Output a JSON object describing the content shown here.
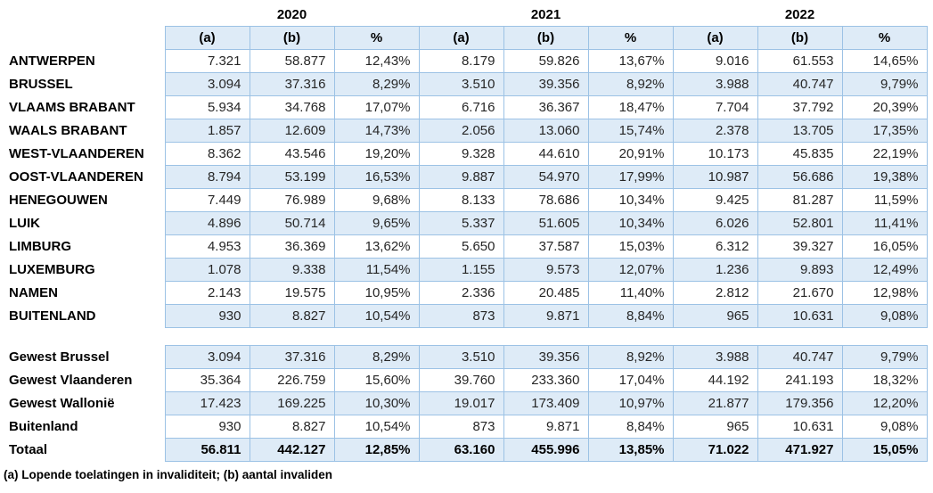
{
  "header": {
    "years": [
      "2020",
      "2021",
      "2022"
    ]
  },
  "columns": [
    "(a)",
    "(b)",
    "%",
    "(a)",
    "(b)",
    "%",
    "(a)",
    "(b)",
    "%"
  ],
  "table": {
    "province_rows": [
      {
        "label": "ANTWERPEN",
        "shaded": false,
        "values": [
          "7.321",
          "58.877",
          "12,43%",
          "8.179",
          "59.826",
          "13,67%",
          "9.016",
          "61.553",
          "14,65%"
        ]
      },
      {
        "label": "BRUSSEL",
        "shaded": true,
        "values": [
          "3.094",
          "37.316",
          "8,29%",
          "3.510",
          "39.356",
          "8,92%",
          "3.988",
          "40.747",
          "9,79%"
        ]
      },
      {
        "label": "VLAAMS BRABANT",
        "shaded": false,
        "values": [
          "5.934",
          "34.768",
          "17,07%",
          "6.716",
          "36.367",
          "18,47%",
          "7.704",
          "37.792",
          "20,39%"
        ]
      },
      {
        "label": "WAALS BRABANT",
        "shaded": true,
        "values": [
          "1.857",
          "12.609",
          "14,73%",
          "2.056",
          "13.060",
          "15,74%",
          "2.378",
          "13.705",
          "17,35%"
        ]
      },
      {
        "label": "WEST-VLAANDEREN",
        "shaded": false,
        "values": [
          "8.362",
          "43.546",
          "19,20%",
          "9.328",
          "44.610",
          "20,91%",
          "10.173",
          "45.835",
          "22,19%"
        ]
      },
      {
        "label": "OOST-VLAANDEREN",
        "shaded": true,
        "values": [
          "8.794",
          "53.199",
          "16,53%",
          "9.887",
          "54.970",
          "17,99%",
          "10.987",
          "56.686",
          "19,38%"
        ]
      },
      {
        "label": "HENEGOUWEN",
        "shaded": false,
        "values": [
          "7.449",
          "76.989",
          "9,68%",
          "8.133",
          "78.686",
          "10,34%",
          "9.425",
          "81.287",
          "11,59%"
        ]
      },
      {
        "label": "LUIK",
        "shaded": true,
        "values": [
          "4.896",
          "50.714",
          "9,65%",
          "5.337",
          "51.605",
          "10,34%",
          "6.026",
          "52.801",
          "11,41%"
        ]
      },
      {
        "label": "LIMBURG",
        "shaded": false,
        "values": [
          "4.953",
          "36.369",
          "13,62%",
          "5.650",
          "37.587",
          "15,03%",
          "6.312",
          "39.327",
          "16,05%"
        ]
      },
      {
        "label": "LUXEMBURG",
        "shaded": true,
        "values": [
          "1.078",
          "9.338",
          "11,54%",
          "1.155",
          "9.573",
          "12,07%",
          "1.236",
          "9.893",
          "12,49%"
        ]
      },
      {
        "label": "NAMEN",
        "shaded": false,
        "values": [
          "2.143",
          "19.575",
          "10,95%",
          "2.336",
          "20.485",
          "11,40%",
          "2.812",
          "21.670",
          "12,98%"
        ]
      },
      {
        "label": "BUITENLAND",
        "shaded": true,
        "values": [
          "930",
          "8.827",
          "10,54%",
          "873",
          "9.871",
          "8,84%",
          "965",
          "10.631",
          "9,08%"
        ]
      }
    ],
    "region_rows": [
      {
        "label": "Gewest Brussel",
        "shaded": true,
        "bold": false,
        "values": [
          "3.094",
          "37.316",
          "8,29%",
          "3.510",
          "39.356",
          "8,92%",
          "3.988",
          "40.747",
          "9,79%"
        ]
      },
      {
        "label": "Gewest Vlaanderen",
        "shaded": false,
        "bold": false,
        "values": [
          "35.364",
          "226.759",
          "15,60%",
          "39.760",
          "233.360",
          "17,04%",
          "44.192",
          "241.193",
          "18,32%"
        ]
      },
      {
        "label": "Gewest Wallonië",
        "shaded": true,
        "bold": false,
        "values": [
          "17.423",
          "169.225",
          "10,30%",
          "19.017",
          "173.409",
          "10,97%",
          "21.877",
          "179.356",
          "12,20%"
        ]
      },
      {
        "label": "Buitenland",
        "shaded": false,
        "bold": false,
        "values": [
          "930",
          "8.827",
          "10,54%",
          "873",
          "9.871",
          "8,84%",
          "965",
          "10.631",
          "9,08%"
        ]
      },
      {
        "label": "Totaal",
        "shaded": true,
        "bold": true,
        "values": [
          "56.811",
          "442.127",
          "12,85%",
          "63.160",
          "455.996",
          "13,85%",
          "71.022",
          "471.927",
          "15,05%"
        ]
      }
    ]
  },
  "footnote": "(a) Lopende toelatingen in invaliditeit; (b) aantal invaliden",
  "colors": {
    "row_band": "#DEEBF7",
    "table_border": "#9CC2E5"
  }
}
